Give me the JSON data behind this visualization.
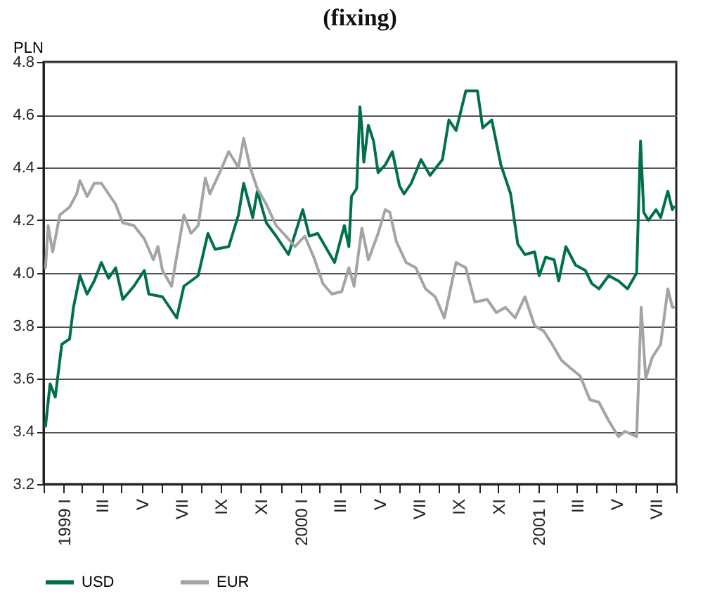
{
  "chart_data": {
    "type": "line",
    "title": "(fixing)",
    "ylabel": "PLN",
    "xlim": [
      "1999-01-01",
      "2001-09-01"
    ],
    "xticks": [
      {
        "value": "1999-01-01",
        "label": null
      },
      {
        "value": "1999-02-01",
        "label": "1999 I"
      },
      {
        "value": "1999-03-01",
        "label": null
      },
      {
        "value": "1999-04-01",
        "label": "III"
      },
      {
        "value": "1999-05-01",
        "label": null
      },
      {
        "value": "1999-06-01",
        "label": "V"
      },
      {
        "value": "1999-07-01",
        "label": null
      },
      {
        "value": "1999-08-01",
        "label": "VII"
      },
      {
        "value": "1999-09-01",
        "label": null
      },
      {
        "value": "1999-10-01",
        "label": "IX"
      },
      {
        "value": "1999-11-01",
        "label": null
      },
      {
        "value": "1999-12-01",
        "label": "XI"
      },
      {
        "value": "2000-01-01",
        "label": null
      },
      {
        "value": "2000-02-01",
        "label": "2000 I"
      },
      {
        "value": "2000-03-01",
        "label": null
      },
      {
        "value": "2000-04-01",
        "label": "III"
      },
      {
        "value": "2000-05-01",
        "label": null
      },
      {
        "value": "2000-06-01",
        "label": "V"
      },
      {
        "value": "2000-07-01",
        "label": null
      },
      {
        "value": "2000-08-01",
        "label": "VII"
      },
      {
        "value": "2000-09-01",
        "label": null
      },
      {
        "value": "2000-10-01",
        "label": "IX"
      },
      {
        "value": "2000-11-01",
        "label": null
      },
      {
        "value": "2000-12-01",
        "label": "XI"
      },
      {
        "value": "2001-01-01",
        "label": null
      },
      {
        "value": "2001-02-01",
        "label": "2001 I"
      },
      {
        "value": "2001-03-01",
        "label": null
      },
      {
        "value": "2001-04-01",
        "label": "III"
      },
      {
        "value": "2001-05-01",
        "label": null
      },
      {
        "value": "2001-06-01",
        "label": "V"
      },
      {
        "value": "2001-07-01",
        "label": null
      },
      {
        "value": "2001-08-01",
        "label": "VII"
      },
      {
        "value": "2001-09-01",
        "label": null
      }
    ],
    "ylim": [
      3.2,
      4.8
    ],
    "yticks": [
      {
        "value": 3.2,
        "label": "3.2"
      },
      {
        "value": 3.4,
        "label": "3.4"
      },
      {
        "value": 3.6,
        "label": "3.6"
      },
      {
        "value": 3.8,
        "label": "3.8"
      },
      {
        "value": 4,
        "label": "4.0"
      },
      {
        "value": 4.2,
        "label": "4.2"
      },
      {
        "value": 4.4,
        "label": "4.4"
      },
      {
        "value": 4.6,
        "label": "4.6"
      },
      {
        "value": 4.8,
        "label": "4.8"
      }
    ],
    "grid": "y",
    "legend": "bottom",
    "line_style": "solid",
    "marker": "none",
    "series": [
      {
        "name": "USD",
        "color": "#00704a",
        "x": [
          "1999-01-04",
          "1999-01-11",
          "1999-01-19",
          "1999-01-29",
          "1999-02-10",
          "1999-02-16",
          "1999-02-26",
          "1999-03-09",
          "1999-03-20",
          "1999-03-31",
          "1999-04-11",
          "1999-04-22",
          "1999-05-03",
          "1999-05-20",
          "1999-06-05",
          "1999-06-12",
          "1999-07-03",
          "1999-07-25",
          "1999-08-05",
          "1999-08-27",
          "1999-09-11",
          "1999-09-22",
          "1999-10-13",
          "1999-10-28",
          "1999-11-05",
          "1999-11-19",
          "1999-11-26",
          "1999-12-10",
          "1999-12-25",
          "2000-01-13",
          "2000-02-04",
          "2000-02-14",
          "2000-02-27",
          "2000-03-24",
          "2000-04-08",
          "2000-04-15",
          "2000-04-19",
          "2000-04-27",
          "2000-05-02",
          "2000-05-05",
          "2000-05-08",
          "2000-05-15",
          "2000-05-23",
          "2000-05-30",
          "2000-06-10",
          "2000-06-21",
          "2000-07-02",
          "2000-07-09",
          "2000-07-20",
          "2000-08-04",
          "2000-08-18",
          "2000-09-06",
          "2000-09-16",
          "2000-09-27",
          "2000-10-12",
          "2000-10-30",
          "2000-11-07",
          "2000-11-21",
          "2000-12-05",
          "2000-12-20",
          "2000-12-31",
          "2001-01-11",
          "2001-01-26",
          "2001-02-02",
          "2001-02-12",
          "2001-02-25",
          "2001-03-04",
          "2001-03-15",
          "2001-03-30",
          "2001-04-14",
          "2001-04-24",
          "2001-05-05",
          "2001-05-20",
          "2001-06-04",
          "2001-06-18",
          "2001-07-02",
          "2001-07-08",
          "2001-07-13",
          "2001-07-20",
          "2001-08-01",
          "2001-08-08",
          "2001-08-19",
          "2001-08-26",
          "2001-08-28"
        ],
        "values": [
          3.42,
          3.58,
          3.53,
          3.73,
          3.75,
          3.87,
          3.99,
          3.92,
          3.97,
          4.04,
          3.98,
          4.02,
          3.9,
          3.95,
          4.01,
          3.92,
          3.91,
          3.83,
          3.95,
          3.99,
          4.15,
          4.09,
          4.1,
          4.22,
          4.34,
          4.21,
          4.31,
          4.19,
          4.14,
          4.07,
          4.24,
          4.14,
          4.15,
          4.04,
          4.18,
          4.1,
          4.29,
          4.32,
          4.63,
          4.55,
          4.42,
          4.56,
          4.5,
          4.38,
          4.41,
          4.46,
          4.33,
          4.3,
          4.34,
          4.43,
          4.37,
          4.43,
          4.58,
          4.54,
          4.69,
          4.69,
          4.55,
          4.58,
          4.41,
          4.3,
          4.11,
          4.07,
          4.08,
          3.99,
          4.06,
          4.05,
          3.97,
          4.1,
          4.03,
          4.01,
          3.96,
          3.94,
          3.99,
          3.97,
          3.94,
          4.0,
          4.5,
          4.23,
          4.2,
          4.24,
          4.21,
          4.31,
          4.24,
          4.25
        ]
      },
      {
        "name": "EUR",
        "color": "#a3a3a8",
        "x": [
          "1999-01-04",
          "1999-01-08",
          "1999-01-15",
          "1999-01-26",
          "1999-02-10",
          "1999-02-21",
          "1999-02-26",
          "1999-03-09",
          "1999-03-20",
          "1999-03-31",
          "1999-04-11",
          "1999-04-22",
          "1999-05-03",
          "1999-05-20",
          "1999-06-05",
          "1999-06-19",
          "1999-06-26",
          "1999-07-03",
          "1999-07-17",
          "1999-08-05",
          "1999-08-16",
          "1999-08-27",
          "1999-09-07",
          "1999-09-14",
          "1999-09-29",
          "1999-10-13",
          "1999-10-28",
          "1999-11-05",
          "1999-11-15",
          "1999-11-26",
          "1999-12-10",
          "1999-12-25",
          "2000-01-09",
          "2000-01-23",
          "2000-02-07",
          "2000-02-21",
          "2000-03-06",
          "2000-03-20",
          "2000-04-04",
          "2000-04-15",
          "2000-04-23",
          "2000-05-05",
          "2000-05-15",
          "2000-05-30",
          "2000-06-10",
          "2000-06-17",
          "2000-06-27",
          "2000-07-12",
          "2000-07-27",
          "2000-08-11",
          "2000-08-26",
          "2000-09-09",
          "2000-09-27",
          "2000-10-12",
          "2000-10-26",
          "2000-11-14",
          "2000-11-28",
          "2000-12-12",
          "2000-12-27",
          "2001-01-11",
          "2001-01-26",
          "2001-02-09",
          "2001-02-22",
          "2001-03-08",
          "2001-03-22",
          "2001-04-06",
          "2001-04-21",
          "2001-05-05",
          "2001-05-20",
          "2001-06-04",
          "2001-06-14",
          "2001-07-02",
          "2001-07-09",
          "2001-07-16",
          "2001-07-26",
          "2001-08-08",
          "2001-08-19",
          "2001-08-26",
          "2001-08-28"
        ],
        "values": [
          4.02,
          4.18,
          4.08,
          4.22,
          4.25,
          4.3,
          4.35,
          4.29,
          4.34,
          4.34,
          4.3,
          4.26,
          4.19,
          4.18,
          4.13,
          4.05,
          4.1,
          4.01,
          3.95,
          4.22,
          4.15,
          4.18,
          4.36,
          4.3,
          4.38,
          4.46,
          4.4,
          4.51,
          4.4,
          4.32,
          4.26,
          4.18,
          4.14,
          4.1,
          4.14,
          4.06,
          3.96,
          3.92,
          3.93,
          4.02,
          3.95,
          4.17,
          4.05,
          4.15,
          4.24,
          4.23,
          4.12,
          4.04,
          4.02,
          3.94,
          3.91,
          3.83,
          4.04,
          4.02,
          3.89,
          3.9,
          3.85,
          3.87,
          3.83,
          3.91,
          3.8,
          3.78,
          3.73,
          3.67,
          3.64,
          3.61,
          3.52,
          3.51,
          3.44,
          3.38,
          3.4,
          3.38,
          3.87,
          3.6,
          3.68,
          3.73,
          3.94,
          3.87,
          3.87
        ]
      }
    ]
  }
}
